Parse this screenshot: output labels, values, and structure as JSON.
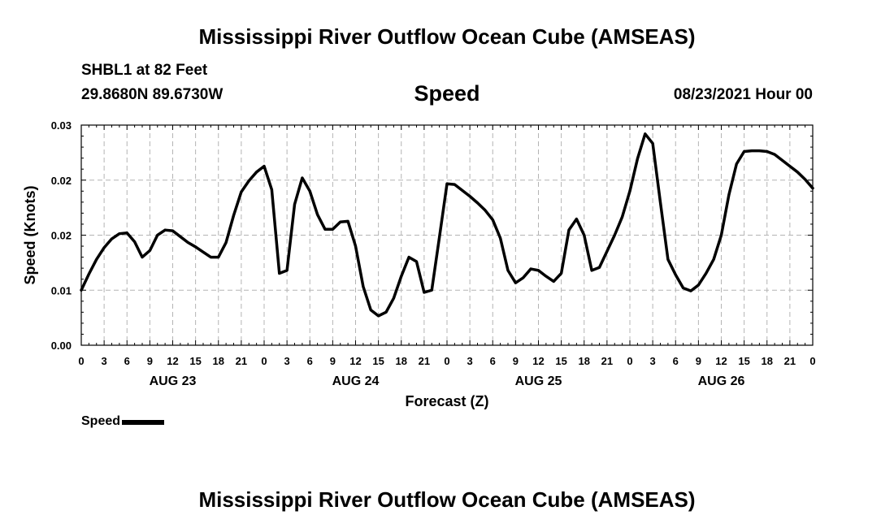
{
  "header": {
    "title": "Mississippi River Outflow Ocean Cube (AMSEAS)",
    "station": "SHBL1 at 82 Feet",
    "coords": "29.8680N  89.6730W",
    "variable": "Speed",
    "datetime": "08/23/2021 Hour 00"
  },
  "footer": {
    "title": "Mississippi River Outflow Ocean Cube (AMSEAS)"
  },
  "legend": {
    "label": "Speed"
  },
  "chart_data": {
    "type": "line",
    "title": "Speed",
    "xlabel": "Forecast (Z)",
    "ylabel": "Speed (Knots)",
    "xlim": [
      0,
      96
    ],
    "ylim": [
      0.0,
      0.03
    ],
    "yticks": [
      0.0,
      0.01,
      0.02,
      0.03
    ],
    "ytick_labels": [
      "0.00",
      "0.01",
      "0.02",
      "0.02",
      "0.03"
    ],
    "ytick_label_values": [
      0.0,
      0.0075,
      0.015,
      0.0225,
      0.03
    ],
    "xtick_hours": [
      0,
      3,
      6,
      9,
      12,
      15,
      18,
      21,
      24,
      27,
      30,
      33,
      36,
      39,
      42,
      45,
      48,
      51,
      54,
      57,
      60,
      63,
      66,
      69,
      72,
      75,
      78,
      81,
      84,
      87,
      90,
      93,
      96
    ],
    "xtick_labels": [
      "0",
      "3",
      "6",
      "9",
      "12",
      "15",
      "18",
      "21",
      "0",
      "3",
      "6",
      "9",
      "12",
      "15",
      "18",
      "21",
      "0",
      "3",
      "6",
      "9",
      "12",
      "15",
      "18",
      "21",
      "0",
      "3",
      "6",
      "9",
      "12",
      "15",
      "18",
      "21",
      "0"
    ],
    "day_labels": [
      {
        "label": "AUG 23",
        "hour": 12
      },
      {
        "label": "AUG 24",
        "hour": 36
      },
      {
        "label": "AUG 25",
        "hour": 60
      },
      {
        "label": "AUG 26",
        "hour": 84
      }
    ],
    "grid": true,
    "series": [
      {
        "name": "Speed",
        "color": "#000000",
        "x": [
          0,
          1,
          2,
          3,
          4,
          5,
          6,
          7,
          8,
          9,
          10,
          11,
          12,
          13,
          14,
          15,
          16,
          17,
          18,
          19,
          20,
          21,
          22,
          23,
          24,
          25,
          26,
          27,
          28,
          29,
          30,
          31,
          32,
          33,
          34,
          35,
          36,
          37,
          38,
          39,
          40,
          41,
          42,
          43,
          44,
          45,
          46,
          47,
          48,
          49,
          50,
          51,
          52,
          53,
          54,
          55,
          56,
          57,
          58,
          59,
          60,
          61,
          62,
          63,
          64,
          65,
          66,
          67,
          68,
          69,
          70,
          71,
          72,
          73,
          74,
          75,
          76,
          77,
          78,
          79,
          80,
          81,
          82,
          83,
          84,
          85,
          86,
          87,
          88,
          89,
          90,
          91,
          92,
          93,
          94,
          95,
          96
        ],
        "values": [
          0.0075,
          0.0097,
          0.0117,
          0.0133,
          0.0145,
          0.0152,
          0.0153,
          0.0141,
          0.012,
          0.0129,
          0.015,
          0.0157,
          0.0156,
          0.0148,
          0.014,
          0.0134,
          0.0127,
          0.012,
          0.012,
          0.014,
          0.0177,
          0.0209,
          0.0224,
          0.0236,
          0.0244,
          0.0212,
          0.0098,
          0.0102,
          0.0192,
          0.0228,
          0.021,
          0.0178,
          0.0158,
          0.0158,
          0.0168,
          0.0169,
          0.0135,
          0.008,
          0.0048,
          0.004,
          0.0045,
          0.0064,
          0.0094,
          0.012,
          0.0114,
          0.0072,
          0.0075,
          0.0147,
          0.022,
          0.0219,
          0.0211,
          0.0203,
          0.0194,
          0.0184,
          0.0171,
          0.0146,
          0.0102,
          0.0085,
          0.0092,
          0.0104,
          0.0102,
          0.0094,
          0.0087,
          0.0098,
          0.0157,
          0.0172,
          0.015,
          0.0102,
          0.0106,
          0.0128,
          0.015,
          0.0175,
          0.021,
          0.0254,
          0.0288,
          0.0275,
          0.0195,
          0.0117,
          0.0096,
          0.0078,
          0.0074,
          0.0082,
          0.0098,
          0.0117,
          0.015,
          0.0205,
          0.0247,
          0.0264,
          0.0265,
          0.0265,
          0.0264,
          0.026,
          0.0252,
          0.0244,
          0.0236,
          0.0226,
          0.0214
        ]
      }
    ]
  }
}
